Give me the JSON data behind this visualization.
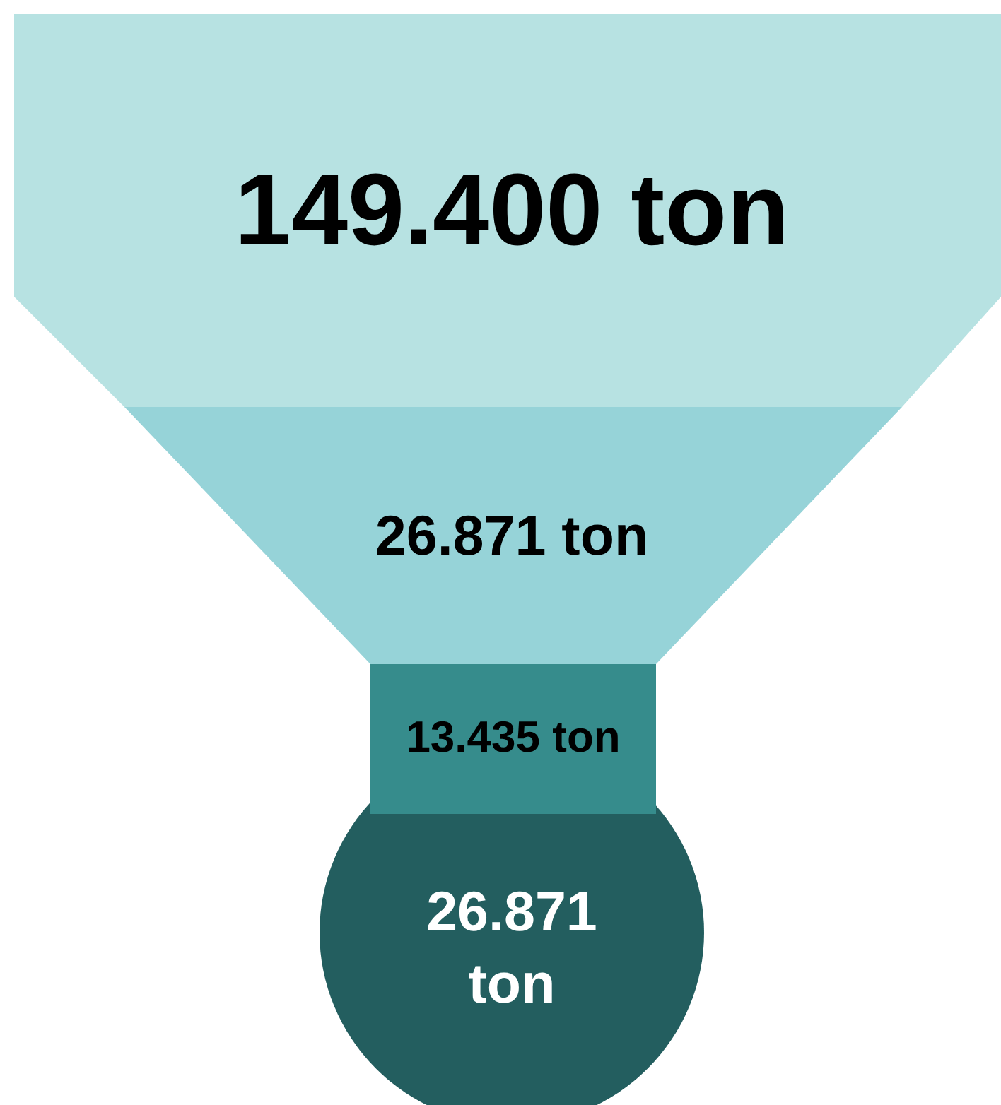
{
  "chart_data": {
    "type": "other",
    "categories": [
      null,
      null,
      null,
      null
    ],
    "values": [
      149400,
      26871,
      13435,
      26871
    ],
    "value_labels": [
      "149.400 ton",
      "26.871 ton",
      "13.435 ton",
      "26.871 ton"
    ],
    "colors": [
      "#b7e2e2",
      "#96d3d8",
      "#368c8c",
      "#235e5f"
    ]
  }
}
